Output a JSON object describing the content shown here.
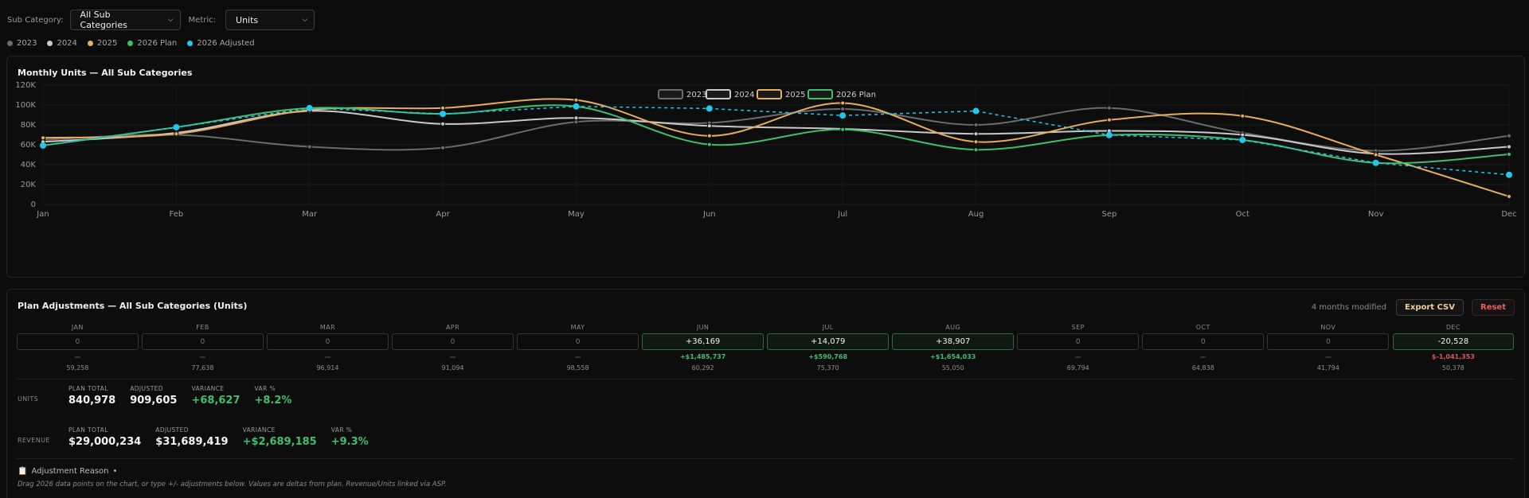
{
  "filters": {
    "sub_category_label": "Sub Category:",
    "sub_category_value": "All Sub Categories",
    "metric_label": "Metric:",
    "metric_value": "Units"
  },
  "top_legend": [
    {
      "name": "2023",
      "color": "#6b6b6b"
    },
    {
      "name": "2024",
      "color": "#c9c9c9"
    },
    {
      "name": "2025",
      "color": "#e8ac5e"
    },
    {
      "name": "2026 Plan",
      "color": "#3fbf6a"
    },
    {
      "name": "2026 Adjusted",
      "color": "#22c7ef"
    }
  ],
  "chart_data": {
    "type": "line",
    "title": "Monthly Units — All Sub Categories",
    "categories": [
      "Jan",
      "Feb",
      "Mar",
      "Apr",
      "May",
      "Jun",
      "Jul",
      "Aug",
      "Sep",
      "Oct",
      "Nov",
      "Dec"
    ],
    "ylim": [
      0,
      120000
    ],
    "yticks": [
      "0",
      "20K",
      "40K",
      "60K",
      "80K",
      "100K",
      "120K"
    ],
    "grid": true,
    "legend_position": "top-center",
    "legend": [
      {
        "name": "2023",
        "color": "#6b6b6b"
      },
      {
        "name": "2024",
        "color": "#c9c9c9"
      },
      {
        "name": "2025",
        "color": "#e8ac5e"
      },
      {
        "name": "2026 Plan",
        "color": "#3fbf6a"
      }
    ],
    "series": [
      {
        "name": "2023",
        "color": "#6b6b6b",
        "values": [
          65000,
          70000,
          58000,
          57000,
          83000,
          82000,
          96000,
          80000,
          97000,
          72000,
          54000,
          69000
        ]
      },
      {
        "name": "2024",
        "color": "#c9c9c9",
        "values": [
          63000,
          72000,
          94000,
          81000,
          87000,
          79000,
          76000,
          71000,
          74000,
          70000,
          51000,
          58000
        ]
      },
      {
        "name": "2025",
        "color": "#e8ac5e",
        "values": [
          67000,
          71000,
          95000,
          97000,
          105000,
          69000,
          102000,
          63000,
          85000,
          89000,
          50000,
          8000
        ]
      },
      {
        "name": "2026 Plan",
        "color": "#3fbf6a",
        "values": [
          59258,
          77638,
          96914,
          91094,
          98558,
          60292,
          75370,
          55050,
          69794,
          64838,
          41794,
          50378
        ]
      },
      {
        "name": "2026 Adjusted",
        "color": "#22c7ef",
        "dashed": true,
        "values": [
          59258,
          77638,
          96914,
          91094,
          98558,
          96461,
          89449,
          93957,
          69794,
          64838,
          41794,
          29850
        ]
      }
    ]
  },
  "adjustments": {
    "title": "Plan Adjustments — All Sub Categories (Units)",
    "modified_text": "4 months modified",
    "export_label": "Export CSV",
    "reset_label": "Reset",
    "months": [
      {
        "m": "JAN",
        "input": "0",
        "delta": "—",
        "base": "59,258"
      },
      {
        "m": "FEB",
        "input": "0",
        "delta": "—",
        "base": "77,638"
      },
      {
        "m": "MAR",
        "input": "0",
        "delta": "—",
        "base": "96,914"
      },
      {
        "m": "APR",
        "input": "0",
        "delta": "—",
        "base": "91,094"
      },
      {
        "m": "MAY",
        "input": "0",
        "delta": "—",
        "base": "98,558"
      },
      {
        "m": "JUN",
        "input": "+36,169",
        "delta": "+$1,485,737",
        "base": "60,292"
      },
      {
        "m": "JUL",
        "input": "+14,079",
        "delta": "+$590,768",
        "base": "75,370"
      },
      {
        "m": "AUG",
        "input": "+38,907",
        "delta": "+$1,654,033",
        "base": "55,050"
      },
      {
        "m": "SEP",
        "input": "0",
        "delta": "—",
        "base": "69,794"
      },
      {
        "m": "OCT",
        "input": "0",
        "delta": "—",
        "base": "64,838"
      },
      {
        "m": "NOV",
        "input": "0",
        "delta": "—",
        "base": "41,794"
      },
      {
        "m": "DEC",
        "input": "-20,528",
        "delta": "$-1,041,353",
        "base": "50,378"
      }
    ],
    "units": {
      "label": "UNITS",
      "plan_total_k": "PLAN TOTAL",
      "plan_total": "840,978",
      "adjusted_k": "ADJUSTED",
      "adjusted": "909,605",
      "variance_k": "VARIANCE",
      "variance": "+68,627",
      "var_pct_k": "VAR %",
      "var_pct": "+8.2%"
    },
    "revenue": {
      "label": "REVENUE",
      "plan_total_k": "PLAN TOTAL",
      "plan_total": "$29,000,234",
      "adjusted_k": "ADJUSTED",
      "adjusted": "$31,689,419",
      "variance_k": "VARIANCE",
      "variance": "+$2,689,185",
      "var_pct_k": "VAR %",
      "var_pct": "+9.3%"
    },
    "reason_icon": "📋",
    "reason_label": "Adjustment Reason",
    "reason_marker": "•",
    "hint": "Drag 2026 data points on the chart, or type +/- adjustments below. Values are deltas from plan. Revenue/Units linked via ASP."
  }
}
